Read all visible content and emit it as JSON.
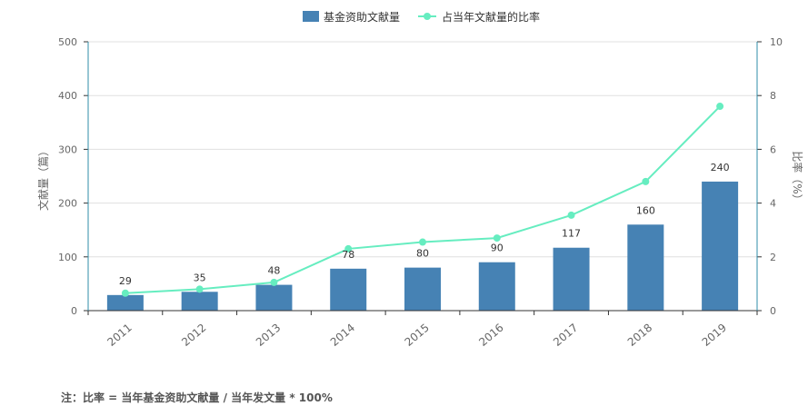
{
  "chart_data": {
    "type": "bar",
    "categories": [
      "2011",
      "2012",
      "2013",
      "2014",
      "2015",
      "2016",
      "2017",
      "2018",
      "2019"
    ],
    "series": [
      {
        "name": "基金资助文献量",
        "type": "bar",
        "axis": "left",
        "values": [
          29,
          35,
          48,
          78,
          80,
          90,
          117,
          160,
          240
        ],
        "color": "#4682B4"
      },
      {
        "name": "占当年文献量的比率",
        "type": "line",
        "axis": "right",
        "values": [
          0.65,
          0.8,
          1.05,
          2.3,
          2.55,
          2.7,
          3.55,
          4.8,
          7.6
        ],
        "color": "#66EDC0"
      }
    ],
    "y_left": {
      "label": "文献量（篇）",
      "min": 0,
      "max": 500,
      "ticks": [
        "0",
        "100",
        "200",
        "300",
        "400",
        "500"
      ]
    },
    "y_right": {
      "label": "比率（%）",
      "min": 0,
      "max": 10,
      "ticks": [
        "0",
        "2",
        "4",
        "6",
        "8",
        "10"
      ]
    },
    "data_labels": [
      "29",
      "35",
      "48",
      "78",
      "80",
      "90",
      "117",
      "160",
      "240"
    ],
    "grid": true,
    "legend_position": "top-center"
  },
  "footnote": "注：比率 = 当年基金资助文献量 / 当年发文量 * 100%"
}
